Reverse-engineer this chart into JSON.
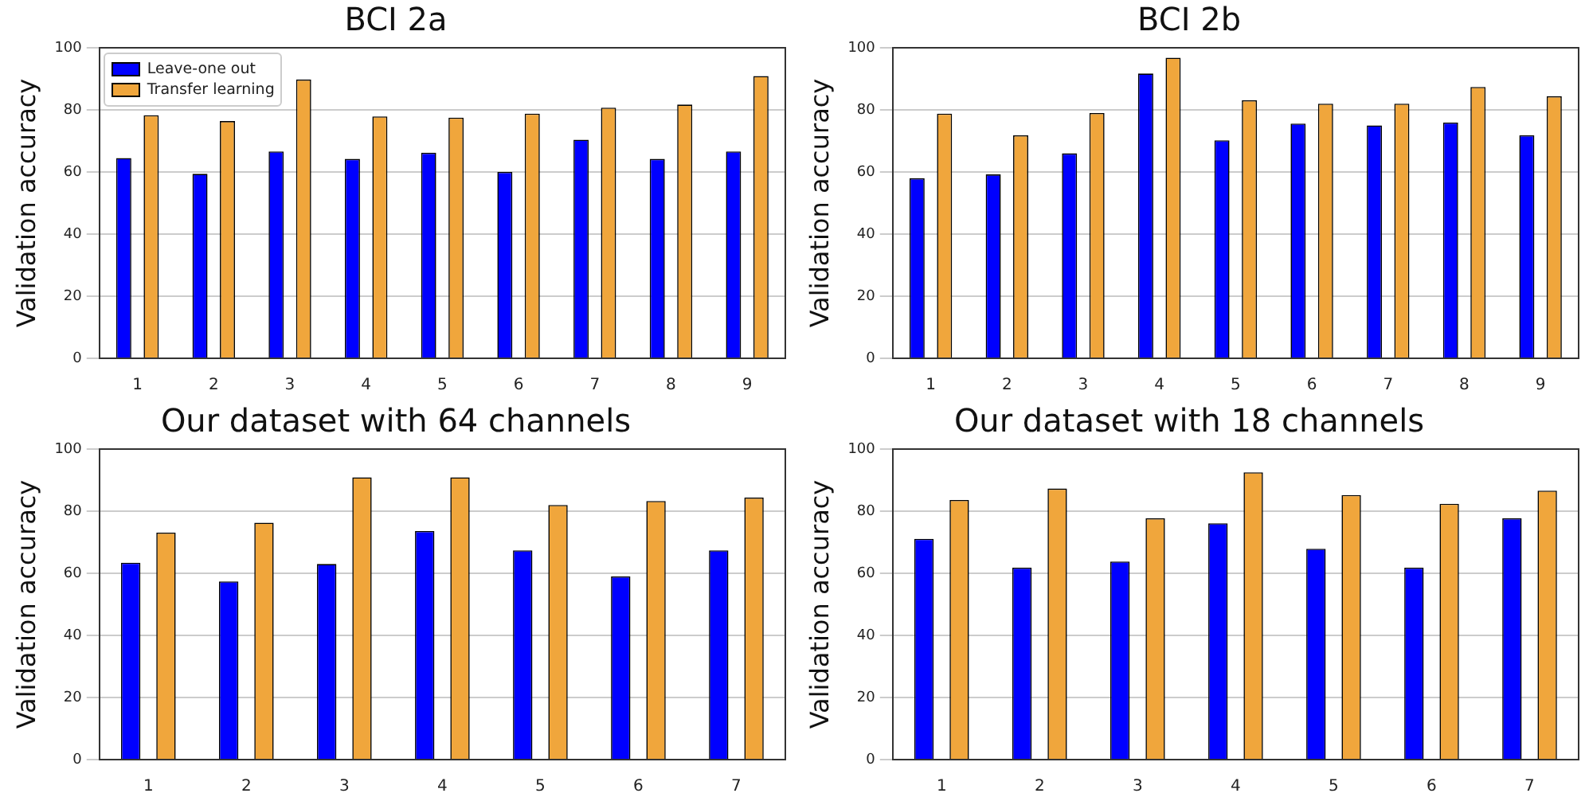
{
  "chart_data": [
    {
      "type": "bar",
      "title": "BCI 2a",
      "ylabel": "Validation accuracy",
      "categories": [
        "1",
        "2",
        "3",
        "4",
        "5",
        "6",
        "7",
        "8",
        "9"
      ],
      "series": [
        {
          "name": "Leave-one out",
          "color": "#0000ff",
          "values": [
            64.5,
            59.4,
            66.6,
            64.2,
            66.2,
            60,
            70.4,
            64.2,
            66.6
          ]
        },
        {
          "name": "Transfer learning",
          "color": "#f0a63c",
          "values": [
            78.3,
            76.4,
            89.8,
            77.9,
            77.5,
            78.8,
            80.7,
            81.7,
            90.9
          ]
        }
      ],
      "ylim": [
        0,
        100
      ],
      "yticks": [
        0,
        20,
        40,
        60,
        80,
        100
      ],
      "grid": "y",
      "legend": "top left"
    },
    {
      "type": "bar",
      "title": "BCI 2b",
      "ylabel": "Validation accuracy",
      "categories": [
        "1",
        "2",
        "3",
        "4",
        "5",
        "6",
        "7",
        "8",
        "9"
      ],
      "series": [
        {
          "color": "#0000ff",
          "values": [
            58,
            59.2,
            66,
            91.7,
            70.2,
            75.6,
            75,
            75.9,
            71.8
          ]
        },
        {
          "color": "#f0a63c",
          "values": [
            78.8,
            71.8,
            79,
            96.8,
            83.1,
            82,
            82,
            87.4,
            84.4
          ]
        }
      ],
      "ylim": [
        0,
        100
      ],
      "yticks": [
        0,
        20,
        40,
        60,
        80,
        100
      ],
      "grid": "y"
    },
    {
      "type": "bar",
      "title": "Our dataset with 64 channels",
      "ylabel": "Validation accuracy",
      "categories": [
        "1",
        "2",
        "3",
        "4",
        "5",
        "6",
        "7"
      ],
      "series": [
        {
          "color": "#0000ff",
          "values": [
            63.4,
            57.4,
            63,
            73.6,
            67.4,
            59,
            67.4
          ]
        },
        {
          "color": "#f0a63c",
          "values": [
            73.1,
            76.3,
            90.9,
            90.9,
            82,
            83.3,
            84.4
          ]
        }
      ],
      "ylim": [
        0,
        100
      ],
      "yticks": [
        0,
        20,
        40,
        60,
        80,
        100
      ],
      "grid": "y"
    },
    {
      "type": "bar",
      "title": "Our dataset with 18 channels",
      "ylabel": "Validation accuracy",
      "categories": [
        "1",
        "2",
        "3",
        "4",
        "5",
        "6",
        "7"
      ],
      "series": [
        {
          "color": "#0000ff",
          "values": [
            71.1,
            61.8,
            63.8,
            76.1,
            67.9,
            61.8,
            77.7
          ]
        },
        {
          "color": "#f0a63c",
          "values": [
            83.6,
            87.3,
            77.7,
            92.5,
            85.2,
            82.4,
            86.6
          ]
        }
      ],
      "ylim": [
        0,
        100
      ],
      "yticks": [
        0,
        20,
        40,
        60,
        80,
        100
      ],
      "grid": "y"
    }
  ]
}
